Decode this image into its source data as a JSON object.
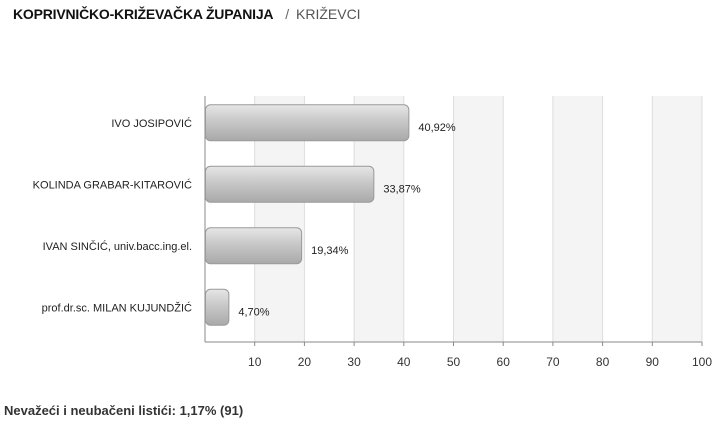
{
  "header": {
    "county": "KOPRIVNIČKO-KRIŽEVAČKA ŽUPANIJA",
    "separator": "/",
    "city": "KRIŽEVCI"
  },
  "chart_data": {
    "type": "bar",
    "orientation": "horizontal",
    "categories": [
      "IVO JOSIPOVIĆ",
      "KOLINDA GRABAR-KITAROVIĆ",
      "IVAN SINČIĆ, univ.bacc.ing.el.",
      "prof.dr.sc. MILAN KUJUNDŽIĆ"
    ],
    "values": [
      40.92,
      33.87,
      19.34,
      4.7
    ],
    "value_labels": [
      "40,92%",
      "33,87%",
      "19,34%",
      "4,70%"
    ],
    "xlim": [
      0,
      100
    ],
    "xticks": [
      "10",
      "20",
      "30",
      "40",
      "50",
      "60",
      "70",
      "80",
      "90",
      "100"
    ],
    "grid": true,
    "bar_color": "#c4c4c4"
  },
  "footer": {
    "invalid_ballots": "Nevažeći i neubačeni listići: 1,17% (91)"
  }
}
